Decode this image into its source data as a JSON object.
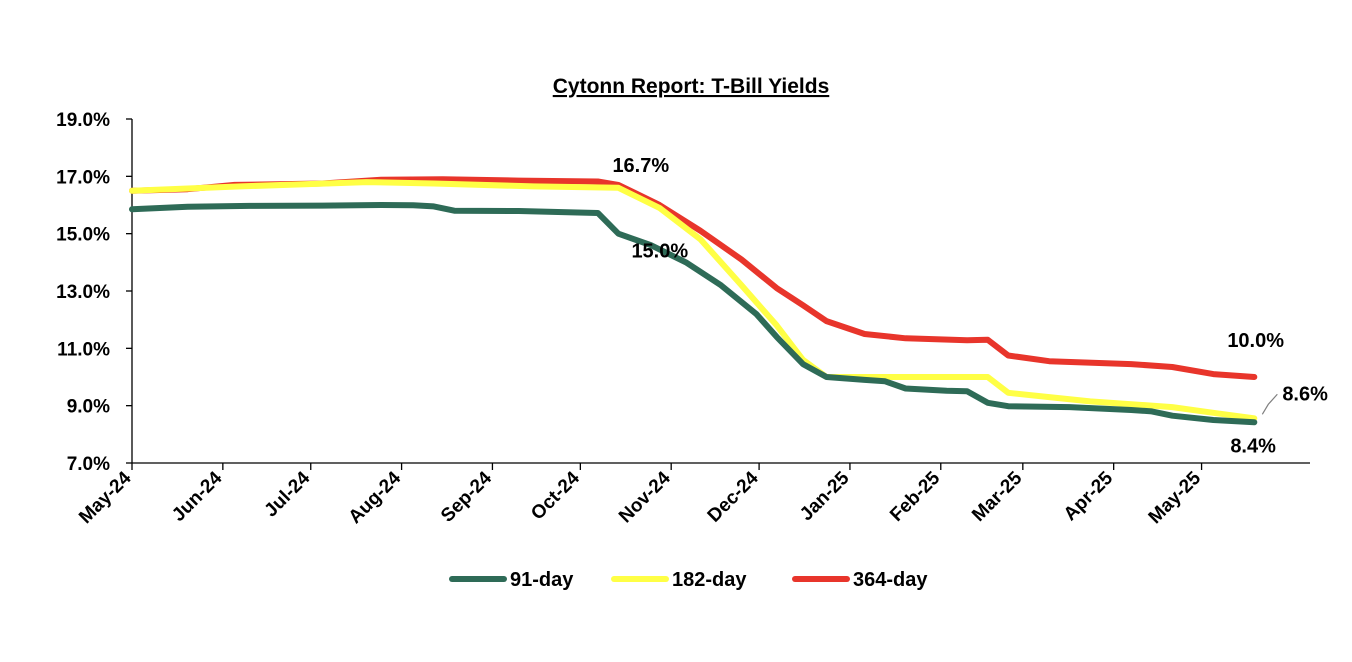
{
  "chart_data": {
    "type": "line",
    "title": "Cytonn Report: T-Bill Yields",
    "xlabel": "",
    "ylabel": "",
    "ylim": [
      7.0,
      19.0
    ],
    "y_ticks": [
      "7.0%",
      "9.0%",
      "11.0%",
      "13.0%",
      "15.0%",
      "17.0%",
      "19.0%"
    ],
    "x_tick_labels": [
      "May-24",
      "Jun-24",
      "Jul-24",
      "Aug-24",
      "Sep-24",
      "Oct-24",
      "Nov-24",
      "Dec-24",
      "Jan-25",
      "Feb-25",
      "Mar-25",
      "Apr-25",
      "May-25"
    ],
    "x_tick_dates": [
      "2024-05-01",
      "2024-06-01",
      "2024-07-01",
      "2024-08-01",
      "2024-09-01",
      "2024-10-01",
      "2024-11-01",
      "2024-12-01",
      "2025-01-01",
      "2025-02-01",
      "2025-03-01",
      "2025-04-01",
      "2025-05-01"
    ],
    "grid": false,
    "legend_position": "bottom",
    "series": [
      {
        "name": "91-day",
        "color": "#2E6B57",
        "points": [
          [
            "2024-05-01",
            15.85
          ],
          [
            "2024-05-20",
            15.94
          ],
          [
            "2024-06-10",
            15.97
          ],
          [
            "2024-07-05",
            15.98
          ],
          [
            "2024-07-25",
            16.0
          ],
          [
            "2024-08-05",
            15.99
          ],
          [
            "2024-08-12",
            15.95
          ],
          [
            "2024-08-19",
            15.8
          ],
          [
            "2024-09-10",
            15.79
          ],
          [
            "2024-09-30",
            15.74
          ],
          [
            "2024-10-07",
            15.72
          ],
          [
            "2024-10-14",
            15.0
          ],
          [
            "2024-10-25",
            14.6
          ],
          [
            "2024-11-06",
            14.0
          ],
          [
            "2024-11-18",
            13.2
          ],
          [
            "2024-11-30",
            12.2
          ],
          [
            "2024-12-07",
            11.4
          ],
          [
            "2024-12-16",
            10.45
          ],
          [
            "2024-12-24",
            10.0
          ],
          [
            "2025-01-06",
            9.9
          ],
          [
            "2025-01-13",
            9.85
          ],
          [
            "2025-01-20",
            9.6
          ],
          [
            "2025-02-03",
            9.52
          ],
          [
            "2025-02-10",
            9.5
          ],
          [
            "2025-02-17",
            9.1
          ],
          [
            "2025-02-24",
            8.98
          ],
          [
            "2025-03-17",
            8.95
          ],
          [
            "2025-04-07",
            8.85
          ],
          [
            "2025-04-14",
            8.8
          ],
          [
            "2025-04-21",
            8.65
          ],
          [
            "2025-05-05",
            8.5
          ],
          [
            "2025-05-19",
            8.42
          ]
        ]
      },
      {
        "name": "182-day",
        "color": "#FFFF45",
        "points": [
          [
            "2024-05-01",
            16.5
          ],
          [
            "2024-06-07",
            16.65
          ],
          [
            "2024-07-20",
            16.8
          ],
          [
            "2024-08-12",
            16.75
          ],
          [
            "2024-09-15",
            16.65
          ],
          [
            "2024-10-14",
            16.6
          ],
          [
            "2024-10-28",
            15.9
          ],
          [
            "2024-11-11",
            14.8
          ],
          [
            "2024-11-25",
            13.2
          ],
          [
            "2024-12-07",
            11.8
          ],
          [
            "2024-12-16",
            10.6
          ],
          [
            "2024-12-24",
            10.0
          ],
          [
            "2025-01-06",
            10.0
          ],
          [
            "2025-02-17",
            10.0
          ],
          [
            "2025-02-24",
            9.45
          ],
          [
            "2025-03-10",
            9.3
          ],
          [
            "2025-03-24",
            9.15
          ],
          [
            "2025-04-07",
            9.05
          ],
          [
            "2025-04-21",
            8.95
          ],
          [
            "2025-05-05",
            8.75
          ],
          [
            "2025-05-19",
            8.56
          ]
        ]
      },
      {
        "name": "364-day",
        "color": "#E8352B",
        "points": [
          [
            "2024-05-01",
            16.5
          ],
          [
            "2024-05-20",
            16.55
          ],
          [
            "2024-06-05",
            16.7
          ],
          [
            "2024-07-05",
            16.75
          ],
          [
            "2024-07-25",
            16.88
          ],
          [
            "2024-08-15",
            16.9
          ],
          [
            "2024-09-10",
            16.85
          ],
          [
            "2024-10-07",
            16.82
          ],
          [
            "2024-10-14",
            16.7
          ],
          [
            "2024-10-28",
            16.0
          ],
          [
            "2024-11-11",
            15.1
          ],
          [
            "2024-11-25",
            14.1
          ],
          [
            "2024-12-07",
            13.1
          ],
          [
            "2024-12-16",
            12.5
          ],
          [
            "2024-12-24",
            11.95
          ],
          [
            "2025-01-06",
            11.5
          ],
          [
            "2025-01-20",
            11.35
          ],
          [
            "2025-02-10",
            11.28
          ],
          [
            "2025-02-17",
            11.3
          ],
          [
            "2025-02-24",
            10.75
          ],
          [
            "2025-03-10",
            10.55
          ],
          [
            "2025-04-07",
            10.45
          ],
          [
            "2025-04-21",
            10.35
          ],
          [
            "2025-05-05",
            10.1
          ],
          [
            "2025-05-19",
            10.0
          ]
        ]
      }
    ],
    "annotations": [
      {
        "text": "16.7%",
        "date": "2024-10-14",
        "value": 16.7,
        "series": "364-day"
      },
      {
        "text": "15.0%",
        "date": "2024-10-14",
        "value": 15.0,
        "series": "91-day"
      },
      {
        "text": "10.0%",
        "date": "2025-05-19",
        "value": 10.0,
        "series": "364-day"
      },
      {
        "text": "8.6%",
        "date": "2025-05-19",
        "value": 8.56,
        "series": "182-day"
      },
      {
        "text": "8.4%",
        "date": "2025-05-19",
        "value": 8.42,
        "series": "91-day"
      }
    ]
  }
}
